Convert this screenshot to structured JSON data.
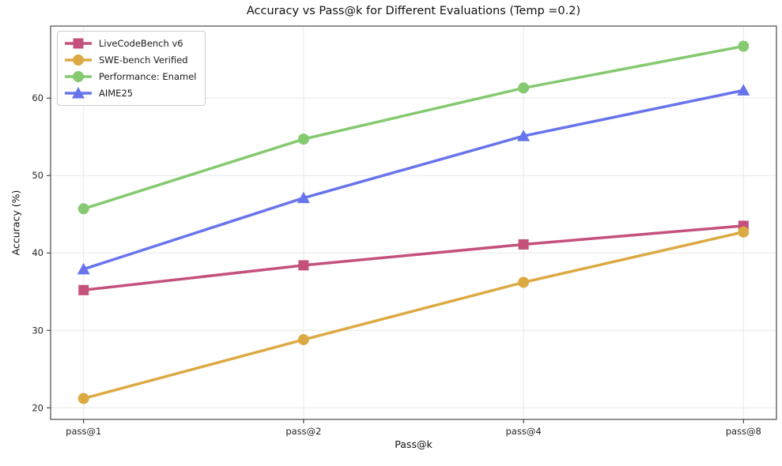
{
  "chart_data": {
    "type": "line",
    "title": "Accuracy vs Pass@k for Different Evaluations (Temp =0.2)",
    "xlabel": "Pass@k",
    "ylabel": "Accuracy (%)",
    "categories": [
      "pass@1",
      "pass@2",
      "pass@4",
      "pass@8"
    ],
    "y_ticks": [
      20,
      30,
      40,
      50,
      60
    ],
    "ylim": [
      18.5,
      69.3
    ],
    "grid": true,
    "legend_position": "upper-left",
    "series": [
      {
        "name": "LiveCodeBench v6",
        "marker": "square",
        "color": "#c4517c",
        "values": [
          35.2,
          38.4,
          41.1,
          43.5
        ]
      },
      {
        "name": "SWE-bench Verified",
        "marker": "circle",
        "color": "#dcaa43",
        "values": [
          21.2,
          28.8,
          36.2,
          42.7
        ]
      },
      {
        "name": "Performance: Enamel",
        "marker": "circle",
        "color": "#85c970",
        "values": [
          45.7,
          54.7,
          61.3,
          66.7
        ]
      },
      {
        "name": "AIME25",
        "marker": "triangle",
        "color": "#6874ec",
        "values": [
          37.9,
          47.1,
          55.1,
          61.0
        ]
      }
    ]
  }
}
